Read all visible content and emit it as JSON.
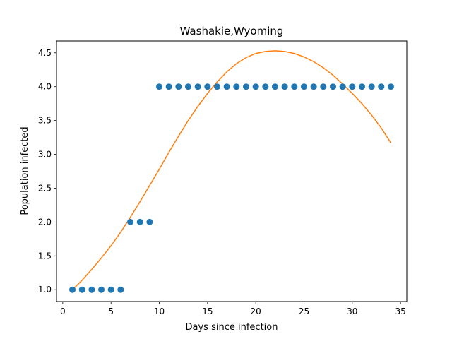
{
  "chart_data": {
    "type": "scatter",
    "title": "Washakie,Wyoming",
    "xlabel": "Days since infection",
    "ylabel": "Population infected",
    "xlim": [
      -0.65,
      35.65
    ],
    "ylim": [
      0.825,
      4.675
    ],
    "xticks": [
      0,
      5,
      10,
      15,
      20,
      25,
      30,
      35
    ],
    "yticks": [
      1.0,
      1.5,
      2.0,
      2.5,
      3.0,
      3.5,
      4.0,
      4.5
    ],
    "ytick_labels": [
      "1.0",
      "1.5",
      "2.0",
      "2.5",
      "3.0",
      "3.5",
      "4.0",
      "4.5"
    ],
    "grid": false,
    "legend": "none",
    "series": [
      {
        "kind": "scatter",
        "color": "#1f77b4",
        "x": [
          1,
          2,
          3,
          4,
          5,
          6,
          7,
          8,
          9,
          10,
          11,
          12,
          13,
          14,
          15,
          16,
          17,
          18,
          19,
          20,
          21,
          22,
          23,
          24,
          25,
          26,
          27,
          28,
          29,
          30,
          31,
          32,
          33,
          34
        ],
        "y": [
          1,
          1,
          1,
          1,
          1,
          1,
          2,
          2,
          2,
          4,
          4,
          4,
          4,
          4,
          4,
          4,
          4,
          4,
          4,
          4,
          4,
          4,
          4,
          4,
          4,
          4,
          4,
          4,
          4,
          4,
          4,
          4,
          4,
          4
        ]
      },
      {
        "kind": "line",
        "color": "#ff7f0e",
        "x": [
          1,
          2,
          3,
          4,
          5,
          6,
          7,
          8,
          9,
          10,
          11,
          12,
          13,
          14,
          15,
          16,
          17,
          18,
          19,
          20,
          21,
          22,
          23,
          24,
          25,
          26,
          27,
          28,
          29,
          30,
          31,
          32,
          33,
          34
        ],
        "y": [
          1.0,
          1.14,
          1.3,
          1.47,
          1.65,
          1.85,
          2.07,
          2.3,
          2.54,
          2.78,
          3.03,
          3.27,
          3.5,
          3.71,
          3.9,
          4.07,
          4.22,
          4.34,
          4.43,
          4.49,
          4.52,
          4.53,
          4.52,
          4.49,
          4.44,
          4.37,
          4.28,
          4.17,
          4.04,
          3.9,
          3.75,
          3.58,
          3.39,
          3.17
        ]
      }
    ]
  }
}
